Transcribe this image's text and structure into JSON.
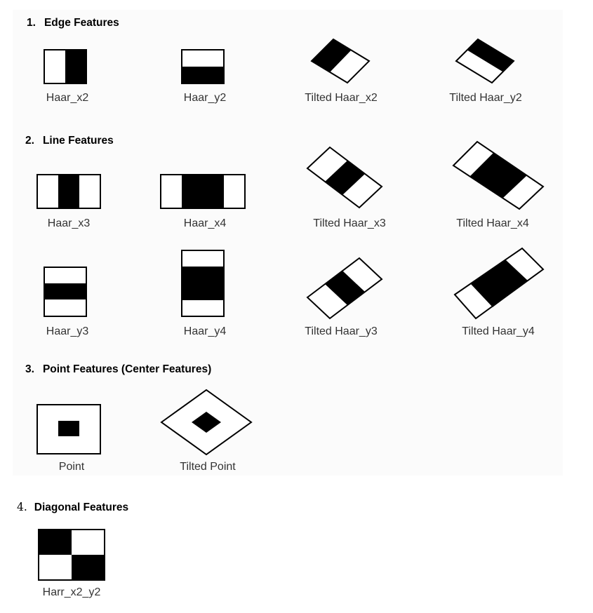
{
  "sections": [
    {
      "number": "1.",
      "title": "Edge Features",
      "items": [
        {
          "caption": "Haar_x2",
          "icon": "haar-x2-icon"
        },
        {
          "caption": "Haar_y2",
          "icon": "haar-y2-icon"
        },
        {
          "caption": "Tilted Haar_x2",
          "icon": "tilted-haar-x2-icon"
        },
        {
          "caption": "Tilted Haar_y2",
          "icon": "tilted-haar-y2-icon"
        }
      ]
    },
    {
      "number": "2.",
      "title": "Line Features",
      "items": [
        {
          "caption": "Haar_x3",
          "icon": "haar-x3-icon"
        },
        {
          "caption": "Haar_x4",
          "icon": "haar-x4-icon"
        },
        {
          "caption": "Tilted Haar_x3",
          "icon": "tilted-haar-x3-icon"
        },
        {
          "caption": "Tilted Haar_x4",
          "icon": "tilted-haar-x4-icon"
        },
        {
          "caption": "Haar_y3",
          "icon": "haar-y3-icon"
        },
        {
          "caption": "Haar_y4",
          "icon": "haar-y4-icon"
        },
        {
          "caption": "Tilted Haar_y3",
          "icon": "tilted-haar-y3-icon"
        },
        {
          "caption": "Tilted Haar_y4",
          "icon": "tilted-haar-y4-icon"
        }
      ]
    },
    {
      "number": "3.",
      "title": "Point Features (Center Features)",
      "items": [
        {
          "caption": "Point",
          "icon": "point-icon"
        },
        {
          "caption": "Tilted Point",
          "icon": "tilted-point-icon"
        }
      ]
    },
    {
      "number": "4.",
      "title": "Diagonal Features",
      "items": [
        {
          "caption": "Harr_x2_y2",
          "icon": "haar-x2-y2-icon"
        }
      ]
    }
  ]
}
